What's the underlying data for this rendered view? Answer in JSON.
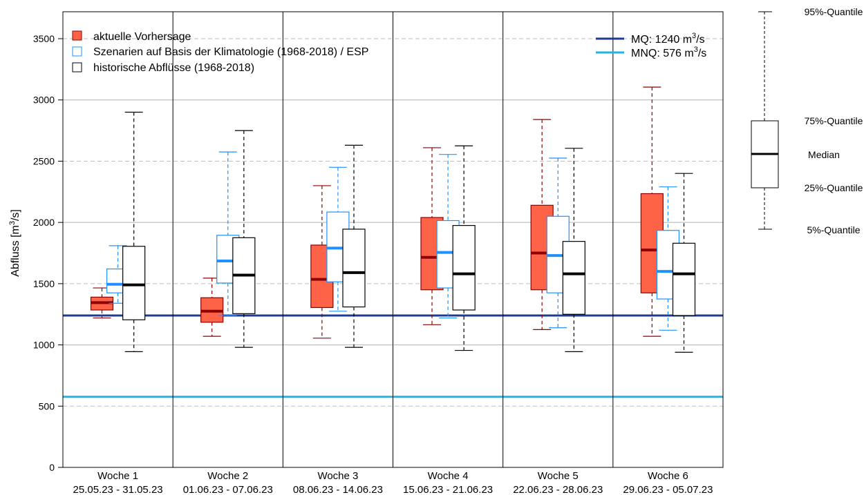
{
  "chart_data": {
    "type": "boxplot",
    "ylabel_main": "Abfluss [m",
    "ylabel_sup": "3",
    "ylabel_tail": "/s]",
    "ylim": [
      0,
      3720
    ],
    "yticks": [
      0,
      500,
      1000,
      1500,
      2000,
      2500,
      3000,
      3500
    ],
    "grid": "horizontal; solid at 1000, 2000, 3000; dashed at 500, 1500, 2500, 3500",
    "legend_placement": "top-left",
    "legend": [
      {
        "label": "aktuelle Vorhersage",
        "fill": "#ff6347",
        "stroke": "#8b0000"
      },
      {
        "label": "Szenarien auf Basis der Klimatologie (1968-2018) / ESP",
        "fill": "#ffffff",
        "stroke": "#1e90ff"
      },
      {
        "label": "historische Abflüsse (1968-2018)",
        "fill": "#ffffff",
        "stroke": "#000000"
      }
    ],
    "reference_lines": [
      {
        "label": "MQ: 1240 m",
        "sup": "3",
        "tail": "/s",
        "value": 1240,
        "color": "#1f3a93"
      },
      {
        "label": "MNQ: 576 m",
        "sup": "3",
        "tail": "/s",
        "value": 576,
        "color": "#1eb4e6"
      }
    ],
    "categories": [
      {
        "label": "Woche 1",
        "dates": "25.05.23 - 31.05.23"
      },
      {
        "label": "Woche 2",
        "dates": "01.06.23 - 07.06.23"
      },
      {
        "label": "Woche 3",
        "dates": "08.06.23 - 14.06.23"
      },
      {
        "label": "Woche 4",
        "dates": "15.06.23 - 21.06.23"
      },
      {
        "label": "Woche 5",
        "dates": "22.06.23 - 28.06.23"
      },
      {
        "label": "Woche 6",
        "dates": "29.06.23 - 05.07.23"
      }
    ],
    "series": [
      {
        "name": "aktuelle Vorhersage",
        "box_fill": "#ff6347",
        "box_stroke": "#8b0000",
        "median_color": "#8b0000",
        "whisker_color": "#8b0000",
        "data": [
          {
            "q05": 1220,
            "q25": 1285,
            "median": 1345,
            "q75": 1390,
            "q95": 1465
          },
          {
            "q05": 1070,
            "q25": 1185,
            "median": 1275,
            "q75": 1385,
            "q95": 1545
          },
          {
            "q05": 1055,
            "q25": 1305,
            "median": 1535,
            "q75": 1815,
            "q95": 2300
          },
          {
            "q05": 1165,
            "q25": 1450,
            "median": 1715,
            "q75": 2040,
            "q95": 2610
          },
          {
            "q05": 1125,
            "q25": 1450,
            "median": 1750,
            "q75": 2140,
            "q95": 2840
          },
          {
            "q05": 1070,
            "q25": 1425,
            "median": 1775,
            "q75": 2235,
            "q95": 3105
          }
        ]
      },
      {
        "name": "Szenarien auf Basis der Klimatologie (1968-2018) / ESP",
        "box_fill": "#ffffff",
        "box_stroke": "#1e90ff",
        "median_color": "#1e90ff",
        "whisker_color": "#1e90ff",
        "data": [
          {
            "q05": 1340,
            "q25": 1425,
            "median": 1495,
            "q75": 1620,
            "q95": 1810
          },
          {
            "q05": 1240,
            "q25": 1505,
            "median": 1685,
            "q75": 1895,
            "q95": 2575
          },
          {
            "q05": 1275,
            "q25": 1515,
            "median": 1790,
            "q75": 2085,
            "q95": 2450
          },
          {
            "q05": 1220,
            "q25": 1465,
            "median": 1755,
            "q75": 2015,
            "q95": 2555
          },
          {
            "q05": 1140,
            "q25": 1425,
            "median": 1730,
            "q75": 2050,
            "q95": 2525
          },
          {
            "q05": 1120,
            "q25": 1375,
            "median": 1600,
            "q75": 1935,
            "q95": 2290
          }
        ]
      },
      {
        "name": "historische Abflüsse (1968-2018)",
        "box_fill": "#ffffff",
        "box_stroke": "#000000",
        "median_color": "#000000",
        "whisker_color": "#000000",
        "data": [
          {
            "q05": 945,
            "q25": 1205,
            "median": 1490,
            "q75": 1805,
            "q95": 2900
          },
          {
            "q05": 980,
            "q25": 1255,
            "median": 1570,
            "q75": 1875,
            "q95": 2750
          },
          {
            "q05": 980,
            "q25": 1310,
            "median": 1590,
            "q75": 1945,
            "q95": 2630
          },
          {
            "q05": 955,
            "q25": 1285,
            "median": 1580,
            "q75": 1975,
            "q95": 2625
          },
          {
            "q05": 945,
            "q25": 1250,
            "median": 1580,
            "q75": 1845,
            "q95": 2605
          },
          {
            "q05": 940,
            "q25": 1240,
            "median": 1580,
            "q75": 1830,
            "q95": 2400
          }
        ]
      }
    ]
  },
  "key_legend": {
    "q95": "95%-Quantile",
    "q75": "75%-Quantile",
    "median": "Median",
    "q25": "25%-Quantile",
    "q05": "5%-Quantile"
  }
}
